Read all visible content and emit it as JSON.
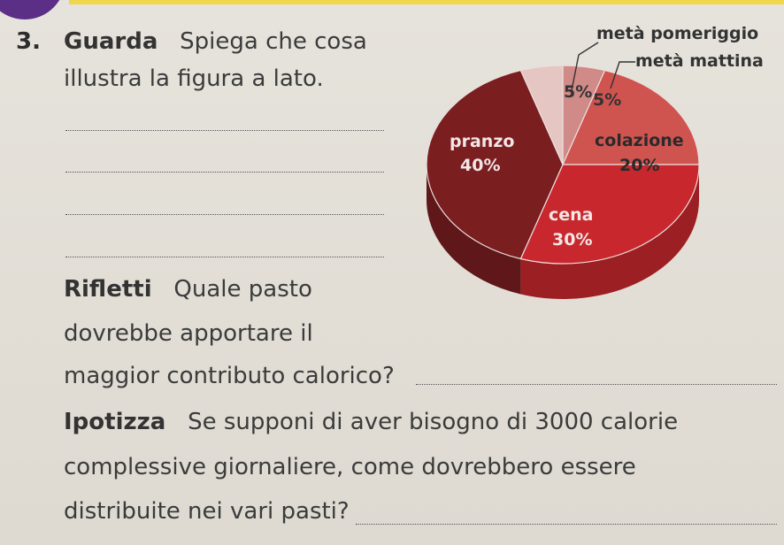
{
  "exercise": {
    "number": "3.",
    "guarda_label": "Guarda",
    "guarda_text": "Spiega che cosa",
    "guarda_text_2": "illustra la figura a lato.",
    "rifletti_label": "Rifletti",
    "rifletti_text": "Quale pasto",
    "rifletti_text_2": "dovrebbe apportare il",
    "rifletti_text_3": "maggior contributo calorico?",
    "ipotizza_label": "Ipotizza",
    "ipotizza_text": "Se supponi di aver bisogno di 3000 calorie",
    "ipotizza_text_2": "complessive giornaliere, come dovrebbero essere",
    "ipotizza_text_3": "distribuite nei vari pasti?"
  },
  "chart_data": {
    "type": "pie",
    "categories": [
      "metà mattina",
      "colazione",
      "cena",
      "pranzo",
      "metà pomeriggio"
    ],
    "values": [
      5,
      20,
      30,
      40,
      5
    ],
    "labels": {
      "meta_mattina_name": "metà mattina",
      "meta_mattina_value": "5%",
      "meta_pomeriggio_name": "metà pomeriggio",
      "meta_pomeriggio_value": "5%",
      "colazione_name": "colazione",
      "colazione_value": "20%",
      "cena_name": "cena",
      "cena_value": "30%",
      "pranzo_name": "pranzo",
      "pranzo_value": "40%"
    },
    "colors": [
      "#d08a88",
      "#cf5450",
      "#c8282d",
      "#7a1e20",
      "#e6c6c3"
    ]
  }
}
